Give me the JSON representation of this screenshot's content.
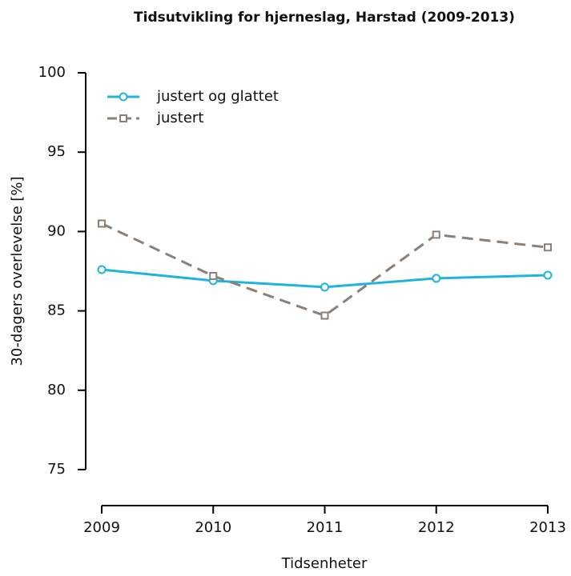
{
  "chart_data": {
    "type": "line",
    "title": "Tidsutvikling for hjerneslag, Harstad (2009-2013)",
    "xlabel": "Tidsenheter",
    "ylabel": "30-dagers overlevelse [%]",
    "x": [
      2009,
      2010,
      2011,
      2012,
      2013
    ],
    "xlim": [
      2009,
      2013
    ],
    "xticks": [
      2009,
      2010,
      2011,
      2012,
      2013
    ],
    "ylim": [
      75,
      100
    ],
    "yticks": [
      75,
      80,
      85,
      90,
      95,
      100
    ],
    "legend": "top-left",
    "series": [
      {
        "name": "justert og glattet",
        "color": "#1fb4e0",
        "dash": false,
        "marker": "circle",
        "values": [
          87.6,
          86.9,
          86.5,
          87.05,
          87.25
        ]
      },
      {
        "name": "justert",
        "color": "#8c7f76",
        "dash": true,
        "marker": "square",
        "values": [
          90.5,
          87.2,
          84.7,
          89.8,
          89.0
        ]
      }
    ]
  }
}
